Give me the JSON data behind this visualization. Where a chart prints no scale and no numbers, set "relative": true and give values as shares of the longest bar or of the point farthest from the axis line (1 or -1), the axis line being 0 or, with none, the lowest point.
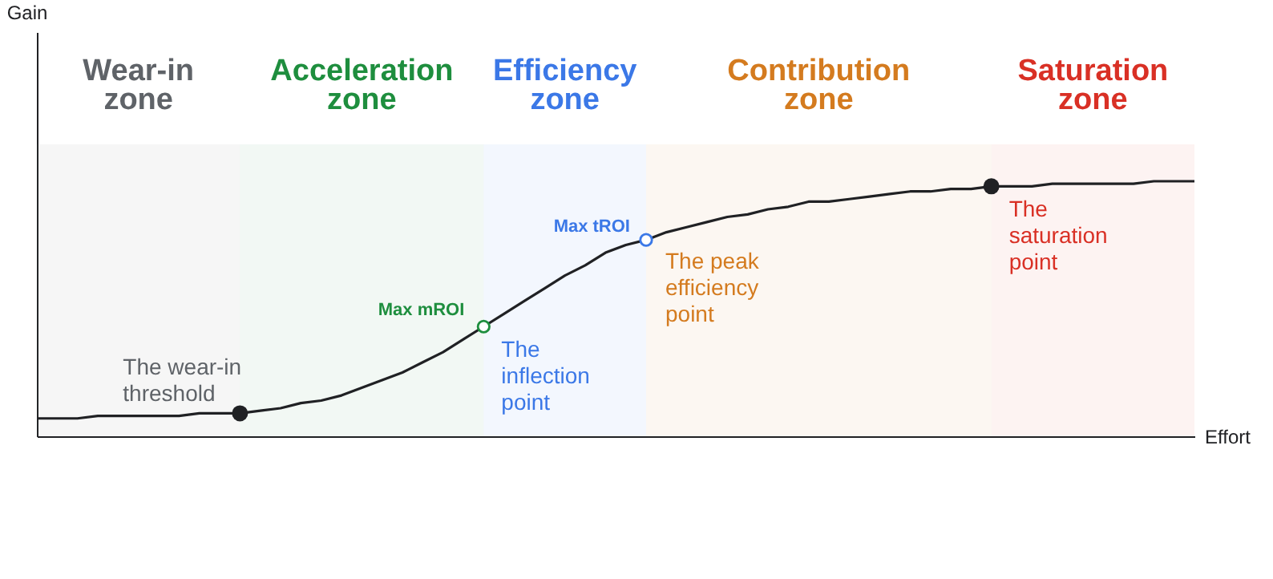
{
  "chart_data": {
    "type": "line",
    "relative": true,
    "xlabel": "Effort",
    "categories": [
      null,
      null,
      null,
      null,
      null,
      null,
      null,
      null,
      null,
      null,
      null,
      null,
      null,
      null,
      null,
      null,
      null,
      null,
      null,
      null,
      null,
      null,
      null,
      null,
      null,
      null,
      null,
      null,
      null,
      null,
      null,
      null,
      null,
      null,
      null,
      null,
      null,
      null,
      null,
      null,
      null,
      null,
      null,
      null,
      null,
      null,
      null,
      null,
      null,
      null,
      null,
      null,
      null,
      null,
      null,
      null,
      null,
      null
    ],
    "series": [
      {
        "color": "#202124",
        "values": [
          0.07,
          0.07,
          0.07,
          0.08,
          0.08,
          0.08,
          0.08,
          0.08,
          0.09,
          0.09,
          0.09,
          0.1,
          0.11,
          0.13,
          0.14,
          0.16,
          0.19,
          0.22,
          0.25,
          0.29,
          0.33,
          0.38,
          0.43,
          0.48,
          0.53,
          0.58,
          0.63,
          0.67,
          0.72,
          0.75,
          0.77,
          0.8,
          0.82,
          0.84,
          0.86,
          0.87,
          0.89,
          0.9,
          0.92,
          0.92,
          0.93,
          0.94,
          0.95,
          0.96,
          0.96,
          0.97,
          0.97,
          0.98,
          0.98,
          0.98,
          0.99,
          0.99,
          0.99,
          0.99,
          0.99,
          1.0,
          1.0,
          1.0
        ]
      }
    ],
    "annotations": [
      "Gain",
      "Wear-in zone",
      "Acceleration zone",
      "Efficiency zone",
      "Contribution zone",
      "Saturation zone",
      "The wear-in threshold",
      "Max mROI",
      "The inflection point",
      "Max tROI",
      "The peak efficiency point",
      "The saturation point"
    ]
  }
}
